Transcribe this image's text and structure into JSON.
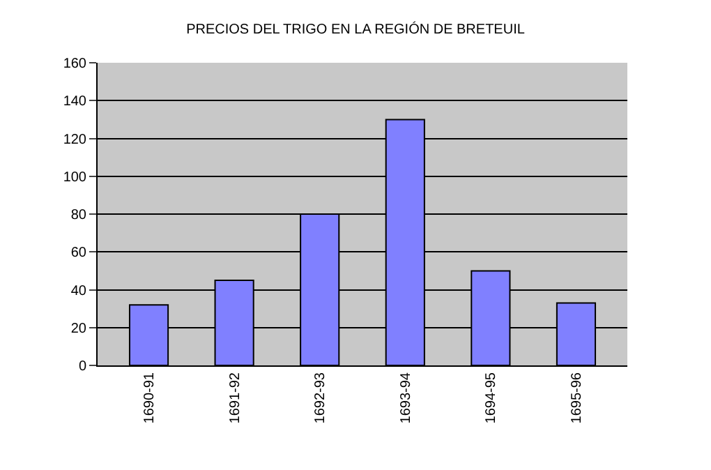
{
  "chart_data": {
    "type": "bar",
    "title": "PRECIOS DEL TRIGO EN LA REGIÓN DE BRETEUIL",
    "categories": [
      "1690-91",
      "1691-92",
      "1692-93",
      "1693-94",
      "1694-95",
      "1695-96"
    ],
    "values": [
      32,
      45,
      80,
      130,
      50,
      33
    ],
    "color": "#8080ff",
    "ylim": [
      0,
      160
    ],
    "yticks": [
      0,
      20,
      40,
      60,
      80,
      100,
      120,
      140,
      160
    ],
    "grid": "y"
  }
}
